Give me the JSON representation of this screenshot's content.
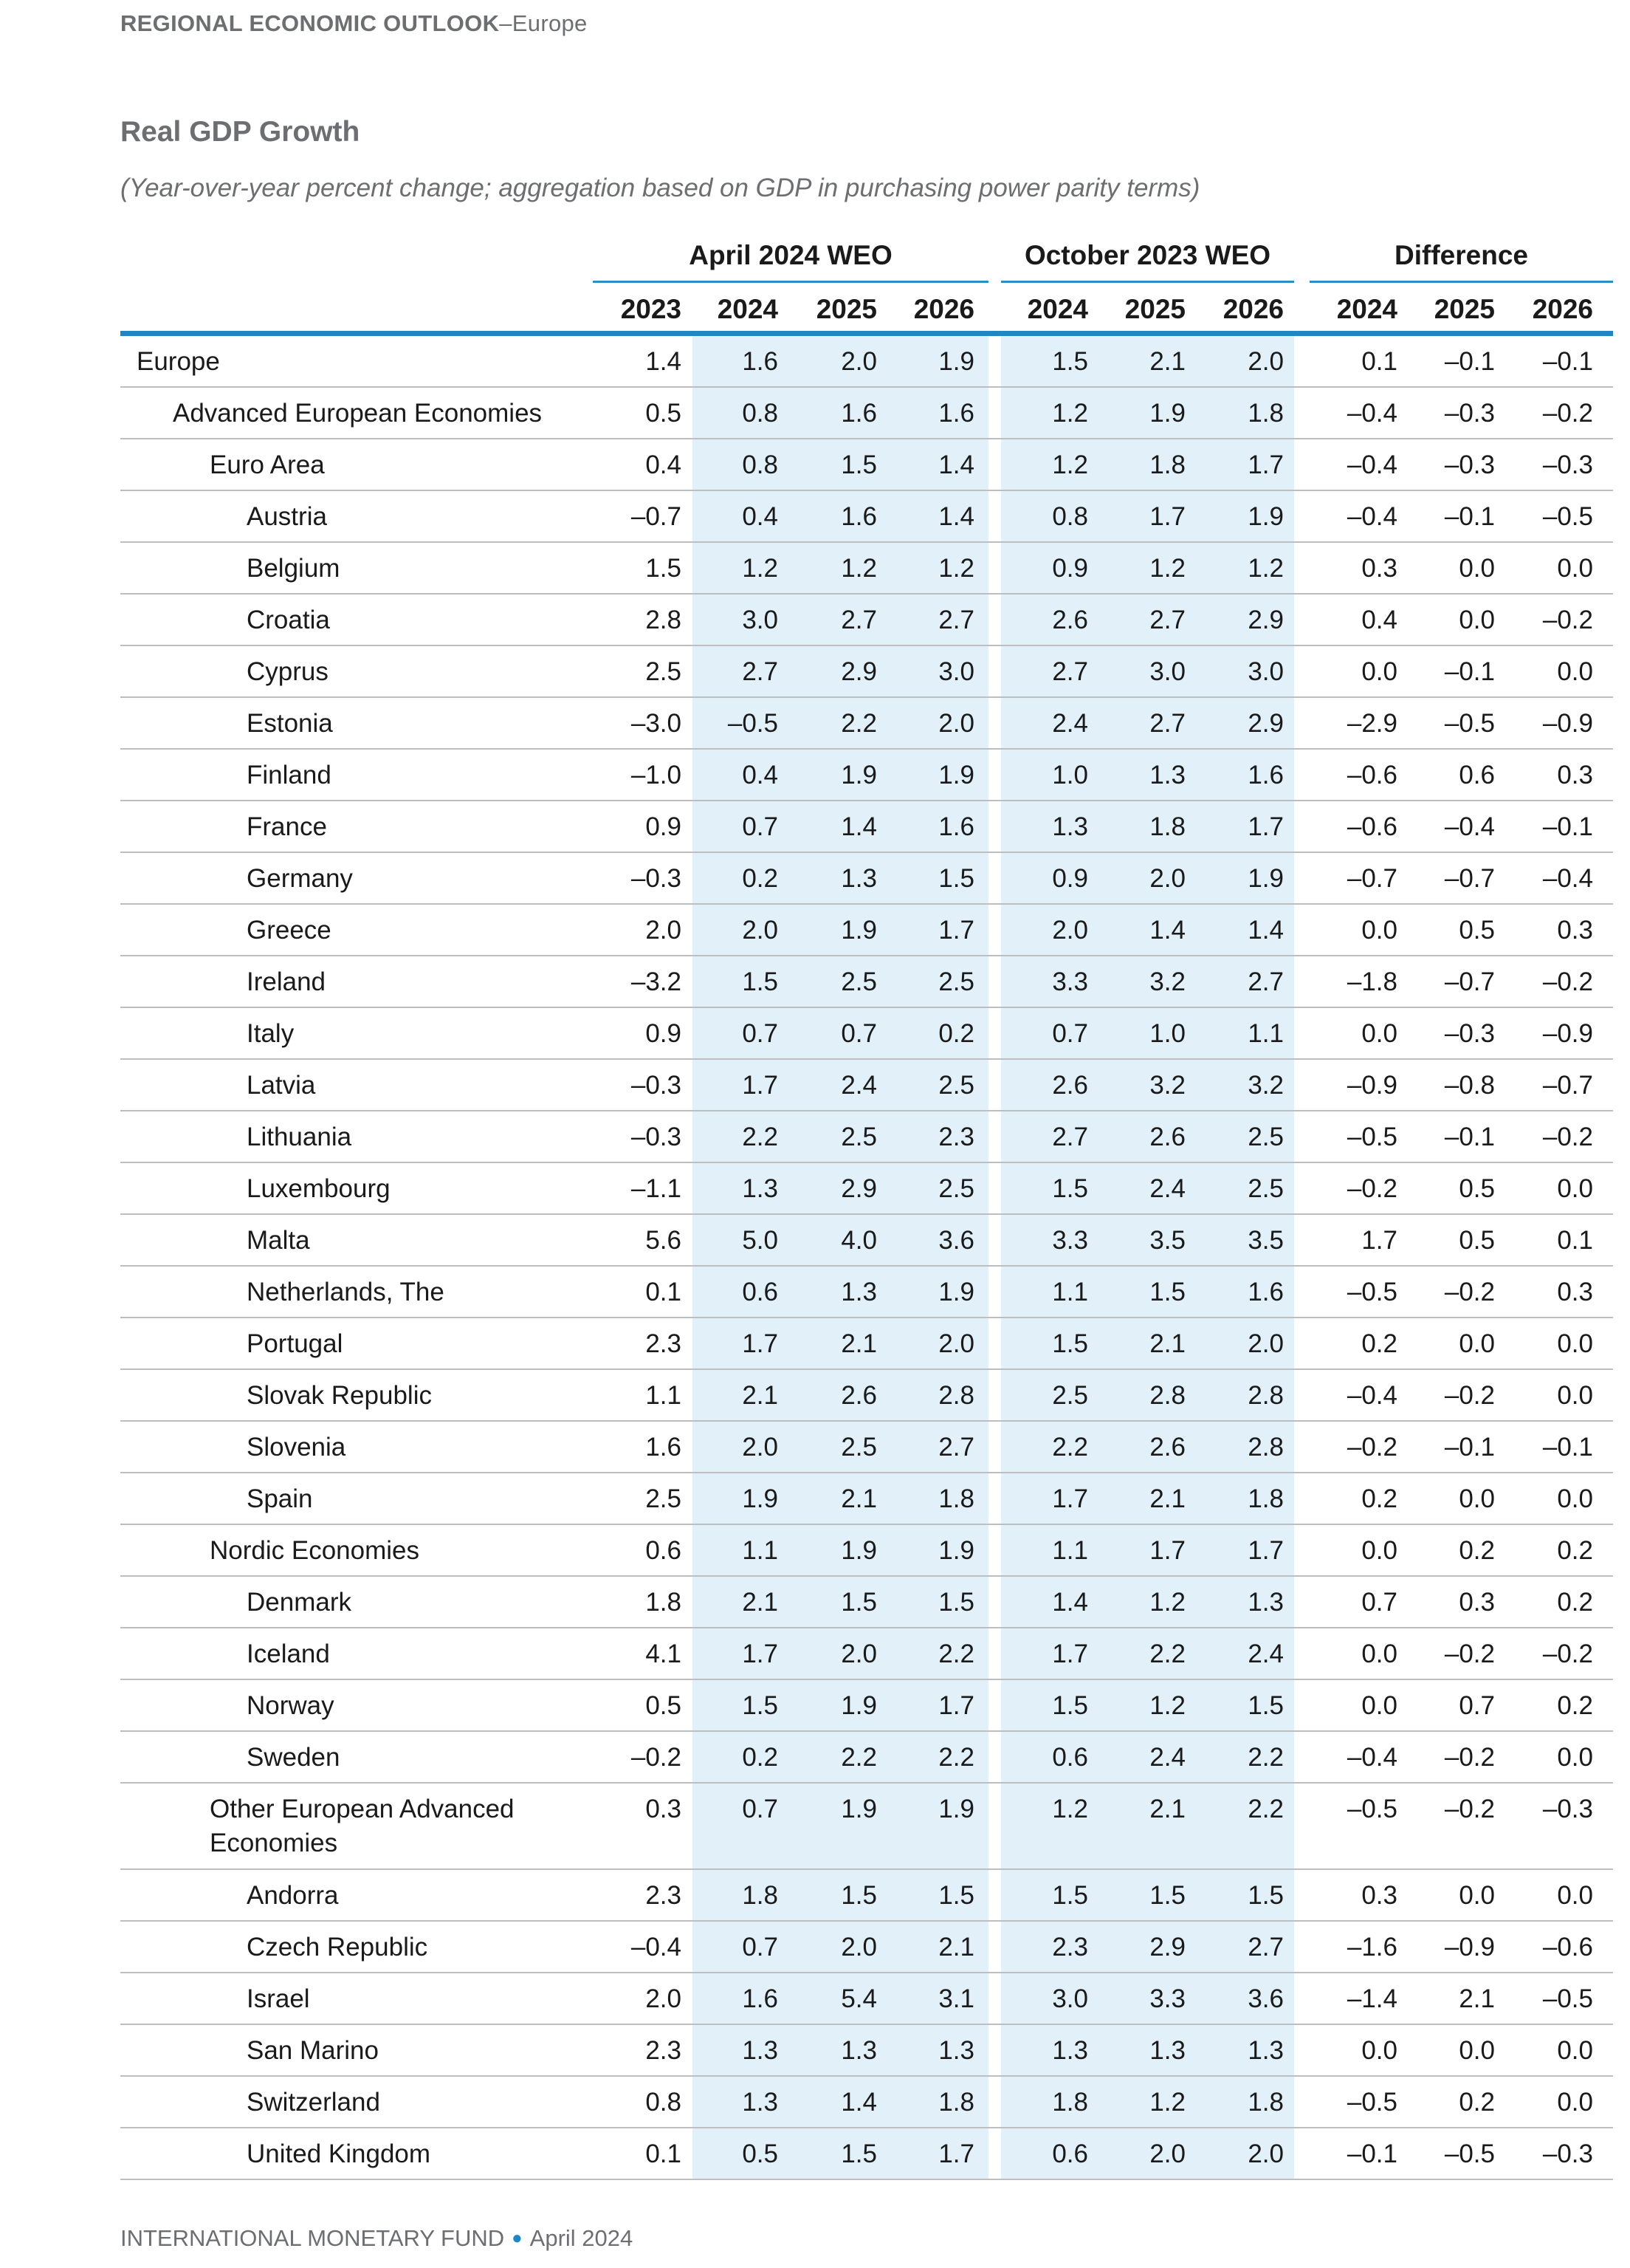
{
  "header": {
    "running_head_bold": "REGIONAL ECONOMIC OUTLOOK",
    "running_head_rest": "–Europe"
  },
  "title": "Real GDP Growth",
  "subtitle": "(Year-over-year percent change; aggregation based on GDP in purchasing power parity terms)",
  "groups": [
    "April 2024 WEO",
    "October 2023 WEO",
    "Difference"
  ],
  "years": [
    "2023",
    "2024",
    "2025",
    "2026",
    "2024",
    "2025",
    "2026",
    "2024",
    "2025",
    "2026"
  ],
  "rows": [
    {
      "label": "Europe",
      "indent": 0,
      "v": [
        "1.4",
        "1.6",
        "2.0",
        "1.9",
        "1.5",
        "2.1",
        "2.0",
        "0.1",
        "–0.1",
        "–0.1"
      ]
    },
    {
      "label": "Advanced European Economies",
      "indent": 1,
      "v": [
        "0.5",
        "0.8",
        "1.6",
        "1.6",
        "1.2",
        "1.9",
        "1.8",
        "–0.4",
        "–0.3",
        "–0.2"
      ]
    },
    {
      "label": "Euro Area",
      "indent": 2,
      "v": [
        "0.4",
        "0.8",
        "1.5",
        "1.4",
        "1.2",
        "1.8",
        "1.7",
        "–0.4",
        "–0.3",
        "–0.3"
      ]
    },
    {
      "label": "Austria",
      "indent": 3,
      "v": [
        "–0.7",
        "0.4",
        "1.6",
        "1.4",
        "0.8",
        "1.7",
        "1.9",
        "–0.4",
        "–0.1",
        "–0.5"
      ]
    },
    {
      "label": "Belgium",
      "indent": 3,
      "v": [
        "1.5",
        "1.2",
        "1.2",
        "1.2",
        "0.9",
        "1.2",
        "1.2",
        "0.3",
        "0.0",
        "0.0"
      ]
    },
    {
      "label": "Croatia",
      "indent": 3,
      "v": [
        "2.8",
        "3.0",
        "2.7",
        "2.7",
        "2.6",
        "2.7",
        "2.9",
        "0.4",
        "0.0",
        "–0.2"
      ]
    },
    {
      "label": "Cyprus",
      "indent": 3,
      "v": [
        "2.5",
        "2.7",
        "2.9",
        "3.0",
        "2.7",
        "3.0",
        "3.0",
        "0.0",
        "–0.1",
        "0.0"
      ]
    },
    {
      "label": "Estonia",
      "indent": 3,
      "v": [
        "–3.0",
        "–0.5",
        "2.2",
        "2.0",
        "2.4",
        "2.7",
        "2.9",
        "–2.9",
        "–0.5",
        "–0.9"
      ]
    },
    {
      "label": "Finland",
      "indent": 3,
      "v": [
        "–1.0",
        "0.4",
        "1.9",
        "1.9",
        "1.0",
        "1.3",
        "1.6",
        "–0.6",
        "0.6",
        "0.3"
      ]
    },
    {
      "label": "France",
      "indent": 3,
      "v": [
        "0.9",
        "0.7",
        "1.4",
        "1.6",
        "1.3",
        "1.8",
        "1.7",
        "–0.6",
        "–0.4",
        "–0.1"
      ]
    },
    {
      "label": "Germany",
      "indent": 3,
      "v": [
        "–0.3",
        "0.2",
        "1.3",
        "1.5",
        "0.9",
        "2.0",
        "1.9",
        "–0.7",
        "–0.7",
        "–0.4"
      ]
    },
    {
      "label": "Greece",
      "indent": 3,
      "v": [
        "2.0",
        "2.0",
        "1.9",
        "1.7",
        "2.0",
        "1.4",
        "1.4",
        "0.0",
        "0.5",
        "0.3"
      ]
    },
    {
      "label": "Ireland",
      "indent": 3,
      "v": [
        "–3.2",
        "1.5",
        "2.5",
        "2.5",
        "3.3",
        "3.2",
        "2.7",
        "–1.8",
        "–0.7",
        "–0.2"
      ]
    },
    {
      "label": "Italy",
      "indent": 3,
      "v": [
        "0.9",
        "0.7",
        "0.7",
        "0.2",
        "0.7",
        "1.0",
        "1.1",
        "0.0",
        "–0.3",
        "–0.9"
      ]
    },
    {
      "label": "Latvia",
      "indent": 3,
      "v": [
        "–0.3",
        "1.7",
        "2.4",
        "2.5",
        "2.6",
        "3.2",
        "3.2",
        "–0.9",
        "–0.8",
        "–0.7"
      ]
    },
    {
      "label": "Lithuania",
      "indent": 3,
      "v": [
        "–0.3",
        "2.2",
        "2.5",
        "2.3",
        "2.7",
        "2.6",
        "2.5",
        "–0.5",
        "–0.1",
        "–0.2"
      ]
    },
    {
      "label": "Luxembourg",
      "indent": 3,
      "v": [
        "–1.1",
        "1.3",
        "2.9",
        "2.5",
        "1.5",
        "2.4",
        "2.5",
        "–0.2",
        "0.5",
        "0.0"
      ]
    },
    {
      "label": "Malta",
      "indent": 3,
      "v": [
        "5.6",
        "5.0",
        "4.0",
        "3.6",
        "3.3",
        "3.5",
        "3.5",
        "1.7",
        "0.5",
        "0.1"
      ]
    },
    {
      "label": "Netherlands, The",
      "indent": 3,
      "v": [
        "0.1",
        "0.6",
        "1.3",
        "1.9",
        "1.1",
        "1.5",
        "1.6",
        "–0.5",
        "–0.2",
        "0.3"
      ]
    },
    {
      "label": "Portugal",
      "indent": 3,
      "v": [
        "2.3",
        "1.7",
        "2.1",
        "2.0",
        "1.5",
        "2.1",
        "2.0",
        "0.2",
        "0.0",
        "0.0"
      ]
    },
    {
      "label": "Slovak Republic",
      "indent": 3,
      "v": [
        "1.1",
        "2.1",
        "2.6",
        "2.8",
        "2.5",
        "2.8",
        "2.8",
        "–0.4",
        "–0.2",
        "0.0"
      ]
    },
    {
      "label": "Slovenia",
      "indent": 3,
      "v": [
        "1.6",
        "2.0",
        "2.5",
        "2.7",
        "2.2",
        "2.6",
        "2.8",
        "–0.2",
        "–0.1",
        "–0.1"
      ]
    },
    {
      "label": "Spain",
      "indent": 3,
      "v": [
        "2.5",
        "1.9",
        "2.1",
        "1.8",
        "1.7",
        "2.1",
        "1.8",
        "0.2",
        "0.0",
        "0.0"
      ]
    },
    {
      "label": "Nordic Economies",
      "indent": 2,
      "v": [
        "0.6",
        "1.1",
        "1.9",
        "1.9",
        "1.1",
        "1.7",
        "1.7",
        "0.0",
        "0.2",
        "0.2"
      ]
    },
    {
      "label": "Denmark",
      "indent": 3,
      "v": [
        "1.8",
        "2.1",
        "1.5",
        "1.5",
        "1.4",
        "1.2",
        "1.3",
        "0.7",
        "0.3",
        "0.2"
      ]
    },
    {
      "label": "Iceland",
      "indent": 3,
      "v": [
        "4.1",
        "1.7",
        "2.0",
        "2.2",
        "1.7",
        "2.2",
        "2.4",
        "0.0",
        "–0.2",
        "–0.2"
      ]
    },
    {
      "label": "Norway",
      "indent": 3,
      "v": [
        "0.5",
        "1.5",
        "1.9",
        "1.7",
        "1.5",
        "1.2",
        "1.5",
        "0.0",
        "0.7",
        "0.2"
      ]
    },
    {
      "label": "Sweden",
      "indent": 3,
      "v": [
        "–0.2",
        "0.2",
        "2.2",
        "2.2",
        "0.6",
        "2.4",
        "2.2",
        "–0.4",
        "–0.2",
        "0.0"
      ]
    },
    {
      "label": "Other European Advanced\nEconomies",
      "indent": 2,
      "v": [
        "0.3",
        "0.7",
        "1.9",
        "1.9",
        "1.2",
        "2.1",
        "2.2",
        "–0.5",
        "–0.2",
        "–0.3"
      ]
    },
    {
      "label": "Andorra",
      "indent": 3,
      "v": [
        "2.3",
        "1.8",
        "1.5",
        "1.5",
        "1.5",
        "1.5",
        "1.5",
        "0.3",
        "0.0",
        "0.0"
      ]
    },
    {
      "label": "Czech Republic",
      "indent": 3,
      "v": [
        "–0.4",
        "0.7",
        "2.0",
        "2.1",
        "2.3",
        "2.9",
        "2.7",
        "–1.6",
        "–0.9",
        "–0.6"
      ]
    },
    {
      "label": "Israel",
      "indent": 3,
      "v": [
        "2.0",
        "1.6",
        "5.4",
        "3.1",
        "3.0",
        "3.3",
        "3.6",
        "–1.4",
        "2.1",
        "–0.5"
      ]
    },
    {
      "label": "San Marino",
      "indent": 3,
      "v": [
        "2.3",
        "1.3",
        "1.3",
        "1.3",
        "1.3",
        "1.3",
        "1.3",
        "0.0",
        "0.0",
        "0.0"
      ]
    },
    {
      "label": "Switzerland",
      "indent": 3,
      "v": [
        "0.8",
        "1.3",
        "1.4",
        "1.8",
        "1.8",
        "1.2",
        "1.8",
        "–0.5",
        "0.2",
        "0.0"
      ]
    },
    {
      "label": "United Kingdom",
      "indent": 3,
      "v": [
        "0.1",
        "0.5",
        "1.5",
        "1.7",
        "0.6",
        "2.0",
        "2.0",
        "–0.1",
        "–0.5",
        "–0.3"
      ]
    }
  ],
  "footer": {
    "org": "INTERNATIONAL MONETARY FUND",
    "date": "April 2024"
  }
}
